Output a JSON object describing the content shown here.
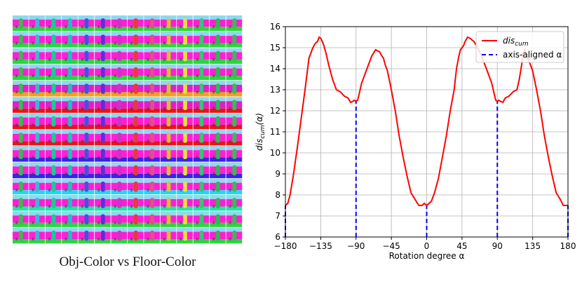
{
  "left_panel": {
    "caption": "Obj-Color vs Floor-Color",
    "rows": 14,
    "cols": 14,
    "row_pairs": [
      [
        "#ff1fd2",
        "#2bd63e"
      ],
      [
        "#ff1fd2",
        "#2bd63e"
      ],
      [
        "#ff1fd2",
        "#2bd63e"
      ],
      [
        "#ff1fd2",
        "#2bd63e"
      ],
      [
        "#e01fc8",
        "#f0a11a"
      ],
      [
        "#e01fc8",
        "#e8131a"
      ],
      [
        "#ff1fd2",
        "#e8131a"
      ],
      [
        "#ff1fd2",
        "#e8131a"
      ],
      [
        "#ff1fd2",
        "#3b22e8"
      ],
      [
        "#ff1fd2",
        "#3b22e8"
      ],
      [
        "#ff1fd2",
        "#22d8f0"
      ],
      [
        "#ff1fd2",
        "#1ee6a8"
      ],
      [
        "#ff1fd2",
        "#2bd63e"
      ],
      [
        "#ff1fd2",
        "#2bd63e"
      ]
    ],
    "object_colors": [
      "#2ec24a",
      "#46b0d0",
      "#1ec79a",
      "#20c0c0",
      "#3a56e0",
      "#5a30d8",
      "#d030c8",
      "#e83a3a",
      "#e0508a",
      "#d8c030",
      "#e8e040",
      "#40c070",
      "#30b850",
      "#2ec24a"
    ],
    "sky_color": "#8fd8ee"
  },
  "chart_data": {
    "type": "line",
    "xlabel": "Rotation degree α",
    "ylabel": "dis_cum(α)",
    "xlim": [
      -180,
      180
    ],
    "ylim": [
      6,
      16
    ],
    "xticks": [
      -180,
      -135,
      -90,
      -45,
      0,
      45,
      90,
      135,
      180
    ],
    "yticks": [
      6,
      7,
      8,
      9,
      10,
      11,
      12,
      13,
      14,
      15,
      16
    ],
    "grid": true,
    "legend_position": "top-right",
    "series": [
      {
        "name": "dis_cum",
        "name_base": "dis",
        "name_sub": "cum",
        "color": "#ff0000",
        "style": "solid",
        "x": [
          -180,
          -177,
          -174,
          -170,
          -165,
          -160,
          -155,
          -150,
          -145,
          -142,
          -139,
          -137,
          -135,
          -133,
          -131,
          -128,
          -125,
          -120,
          -115,
          -110,
          -105,
          -100,
          -97,
          -94,
          -92,
          -90,
          -88,
          -86,
          -83,
          -80,
          -75,
          -70,
          -65,
          -60,
          -57,
          -55,
          -53,
          -50,
          -45,
          -40,
          -35,
          -30,
          -25,
          -20,
          -15,
          -10,
          -6,
          -3,
          0,
          3,
          6,
          10,
          15,
          20,
          25,
          30,
          35,
          38,
          41,
          43,
          45,
          47,
          49,
          52,
          55,
          60,
          65,
          70,
          75,
          80,
          83,
          86,
          88,
          90,
          92,
          94,
          97,
          100,
          105,
          110,
          115,
          118,
          121,
          123,
          125,
          127,
          129,
          132,
          135,
          140,
          145,
          150,
          155,
          160,
          165,
          170,
          174,
          177,
          180
        ],
        "y": [
          7.5,
          7.6,
          8.0,
          8.9,
          10.2,
          11.6,
          13.0,
          14.5,
          15.0,
          15.2,
          15.3,
          15.5,
          15.45,
          15.3,
          15.1,
          14.7,
          14.2,
          13.5,
          13.0,
          12.9,
          12.7,
          12.6,
          12.4,
          12.45,
          12.5,
          12.45,
          12.5,
          12.8,
          13.3,
          13.6,
          14.1,
          14.6,
          14.9,
          14.8,
          14.6,
          14.5,
          14.2,
          13.9,
          13.0,
          12.0,
          10.8,
          9.8,
          8.9,
          8.1,
          7.8,
          7.5,
          7.5,
          7.6,
          7.5,
          7.6,
          7.7,
          8.1,
          8.8,
          9.8,
          10.8,
          12.0,
          13.0,
          14.0,
          14.6,
          14.9,
          15.0,
          15.1,
          15.3,
          15.5,
          15.45,
          15.3,
          15.0,
          14.6,
          14.1,
          13.6,
          13.3,
          12.8,
          12.5,
          12.45,
          12.5,
          12.45,
          12.4,
          12.6,
          12.7,
          12.9,
          13.0,
          13.5,
          14.2,
          14.7,
          14.9,
          14.7,
          14.5,
          14.2,
          13.9,
          13.0,
          12.0,
          10.8,
          9.8,
          8.9,
          8.1,
          7.8,
          7.5,
          7.5,
          7.5
        ]
      },
      {
        "name": "axis-aligned α",
        "color": "#0000ff",
        "style": "dashed",
        "x_positions": [
          -180,
          -90,
          0,
          90,
          180
        ]
      }
    ]
  }
}
